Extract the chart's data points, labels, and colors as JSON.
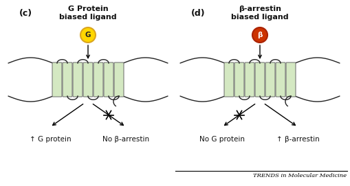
{
  "bg_color": "#ffffff",
  "panel_c": {
    "label": "(c)",
    "title_line1": "G Protein",
    "title_line2": "biased ligand",
    "ligand_color": "#FFD700",
    "ligand_outline": "#DAA520",
    "ligand_letter": "G",
    "ligand_letter_color": "#222222",
    "bottom_left_text": "↑ G protein",
    "bottom_right_text": "No β-arrestin",
    "left_arrow": true,
    "right_crossed": true
  },
  "panel_d": {
    "label": "(d)",
    "title_line1": "β-arrestin",
    "title_line2": "biased ligand",
    "ligand_color": "#CC3300",
    "ligand_outline": "#AA2200",
    "ligand_letter": "β",
    "ligand_letter_color": "#ffffff",
    "bottom_left_text": "No G protein",
    "bottom_right_text": "↑ β-arrestin",
    "left_crossed": true,
    "right_arrow": true
  },
  "receptor_fill": "#d4e8c2",
  "receptor_outline": "#666666",
  "membrane_color": "#222222",
  "text_color": "#111111",
  "footer": "TRENDS in Molecular Medicine",
  "num_helices": 7
}
